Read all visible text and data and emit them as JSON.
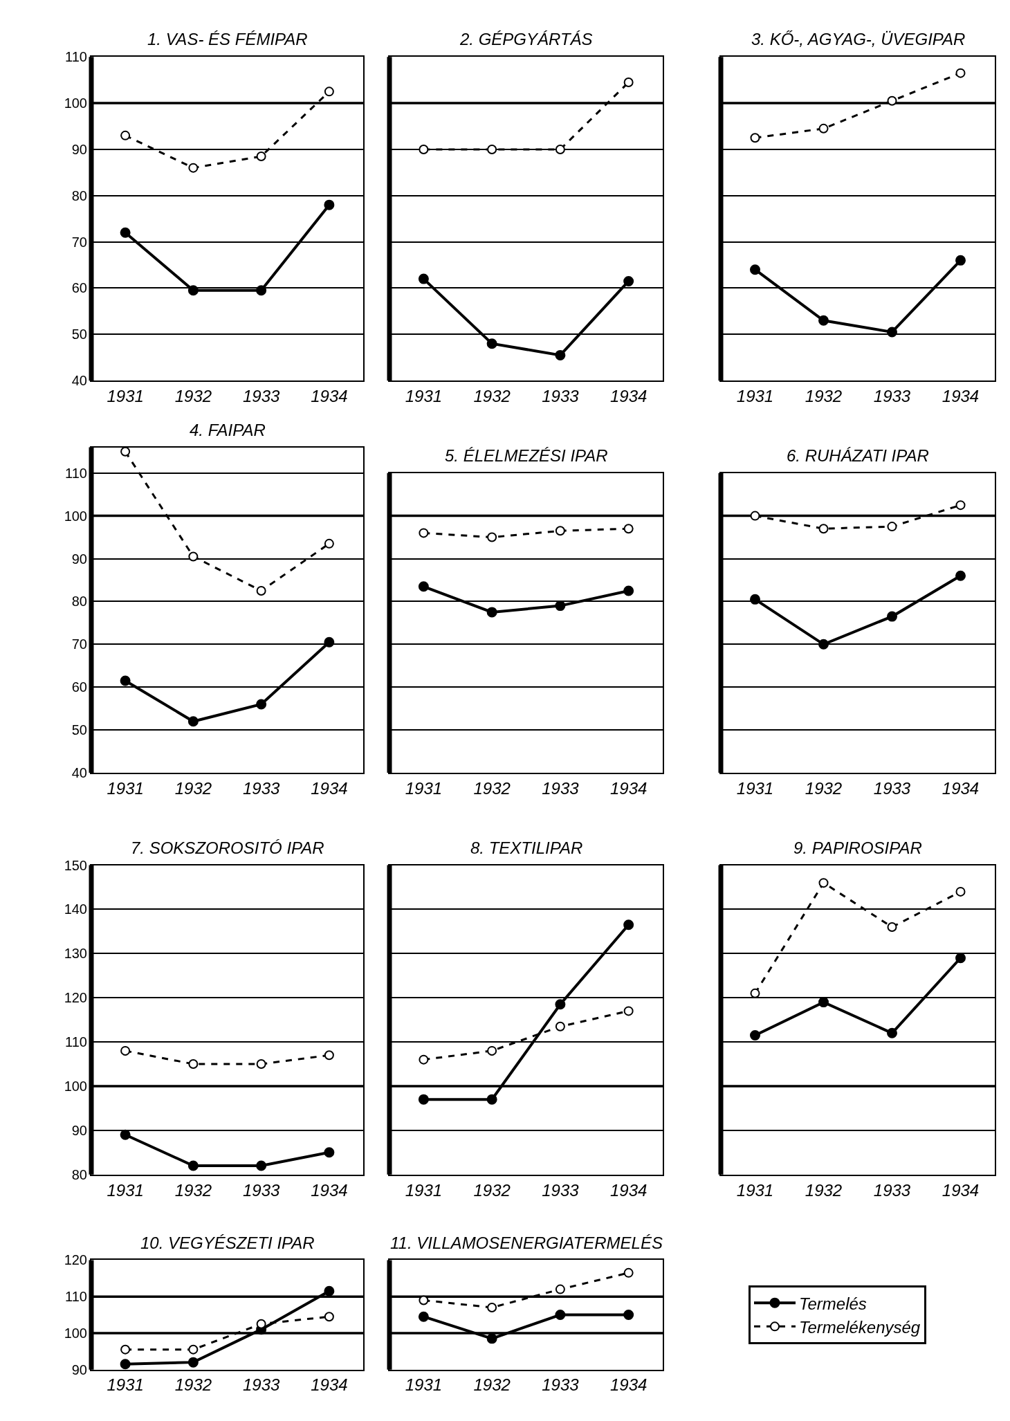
{
  "chart_data": [
    {
      "type": "line",
      "title": "1. VAS- ÉS FÉMIPAR",
      "categories": [
        "1931",
        "1932",
        "1933",
        "1934"
      ],
      "ylim": [
        40,
        110
      ],
      "yticks": [
        40,
        50,
        60,
        70,
        80,
        90,
        100,
        110
      ],
      "grid": "y",
      "legend": "bottom right",
      "ref_lines": [
        {
          "axis": "y",
          "value": 100
        }
      ],
      "series": [
        {
          "name": "Termelés",
          "color": "#000000",
          "marker": "circle",
          "line_style": "solid",
          "values": [
            72,
            59.5,
            59.5,
            78
          ]
        },
        {
          "name": "Termelékenység",
          "color": "#000000",
          "marker": "circle",
          "line_style": "dashed",
          "values": [
            93,
            86,
            88.5,
            102.5
          ]
        }
      ]
    },
    {
      "type": "line",
      "title": "2. GÉPGYÁRTÁS",
      "categories": [
        "1931",
        "1932",
        "1933",
        "1934"
      ],
      "ylim": [
        40,
        110
      ],
      "yticks": [
        40,
        50,
        60,
        70,
        80,
        90,
        100,
        110
      ],
      "grid": "y",
      "tick_labels": "x",
      "ref_lines": [
        {
          "axis": "y",
          "value": 100
        }
      ],
      "series": [
        {
          "color": "#000000",
          "marker": "circle",
          "line_style": "solid",
          "values": [
            62,
            48,
            45.5,
            61.5
          ]
        },
        {
          "color": "#000000",
          "marker": "circle",
          "line_style": "dashed",
          "values": [
            90,
            90,
            90,
            104.5
          ]
        }
      ]
    },
    {
      "type": "line",
      "title": "3. KŐ-, AGYAG-, ÜVEGIPAR",
      "categories": [
        "1931",
        "1932",
        "1933",
        "1934"
      ],
      "ylim": [
        40,
        110
      ],
      "yticks": [
        40,
        50,
        60,
        70,
        80,
        90,
        100,
        110
      ],
      "grid": "y",
      "tick_labels": "x",
      "ref_lines": [
        {
          "axis": "y",
          "value": 100
        }
      ],
      "series": [
        {
          "color": "#000000",
          "marker": "circle",
          "line_style": "solid",
          "values": [
            64,
            53,
            50.5,
            66
          ]
        },
        {
          "color": "#000000",
          "marker": "circle",
          "line_style": "dashed",
          "values": [
            92.5,
            94.5,
            100.5,
            106.5
          ]
        }
      ]
    },
    {
      "type": "line",
      "title": "4. FAIPAR",
      "categories": [
        "1931",
        "1932",
        "1933",
        "1934"
      ],
      "ylim": [
        40,
        116
      ],
      "yticks": [
        40,
        50,
        60,
        70,
        80,
        90,
        100,
        110
      ],
      "grid": "y",
      "ref_lines": [
        {
          "axis": "y",
          "value": 100
        }
      ],
      "series": [
        {
          "color": "#000000",
          "marker": "circle",
          "line_style": "solid",
          "values": [
            61.5,
            52,
            56,
            70.5
          ]
        },
        {
          "color": "#000000",
          "marker": "circle",
          "line_style": "dashed",
          "values": [
            115,
            90.5,
            82.5,
            93.5
          ]
        }
      ]
    },
    {
      "type": "line",
      "title": "5. ÉLELMEZÉSI IPAR",
      "categories": [
        "1931",
        "1932",
        "1933",
        "1934"
      ],
      "ylim": [
        40,
        110
      ],
      "yticks": [
        40,
        50,
        60,
        70,
        80,
        90,
        100,
        110
      ],
      "grid": "y",
      "tick_labels": "x",
      "ref_lines": [
        {
          "axis": "y",
          "value": 100
        }
      ],
      "series": [
        {
          "color": "#000000",
          "marker": "circle",
          "line_style": "solid",
          "values": [
            83.5,
            77.5,
            79,
            82.5
          ]
        },
        {
          "color": "#000000",
          "marker": "circle",
          "line_style": "dashed",
          "values": [
            96,
            95,
            96.5,
            97
          ]
        }
      ]
    },
    {
      "type": "line",
      "title": "6. RUHÁZATI IPAR",
      "categories": [
        "1931",
        "1932",
        "1933",
        "1934"
      ],
      "ylim": [
        40,
        110
      ],
      "yticks": [
        40,
        50,
        60,
        70,
        80,
        90,
        100,
        110
      ],
      "grid": "y",
      "tick_labels": "x",
      "ref_lines": [
        {
          "axis": "y",
          "value": 100
        }
      ],
      "series": [
        {
          "color": "#000000",
          "marker": "circle",
          "line_style": "solid",
          "values": [
            80.5,
            70,
            76.5,
            86
          ]
        },
        {
          "color": "#000000",
          "marker": "circle",
          "line_style": "dashed",
          "values": [
            100,
            97,
            97.5,
            102.5
          ]
        }
      ]
    },
    {
      "type": "line",
      "title": "7. SOKSZOROSITÓ IPAR",
      "categories": [
        "1931",
        "1932",
        "1933",
        "1934"
      ],
      "ylim": [
        80,
        150
      ],
      "yticks": [
        80,
        90,
        100,
        110,
        120,
        130,
        140,
        150
      ],
      "grid": "y",
      "ref_lines": [
        {
          "axis": "y",
          "value": 100
        }
      ],
      "series": [
        {
          "color": "#000000",
          "marker": "circle",
          "line_style": "solid",
          "values": [
            89,
            82,
            82,
            85
          ]
        },
        {
          "color": "#000000",
          "marker": "circle",
          "line_style": "dashed",
          "values": [
            108,
            105,
            105,
            107
          ]
        }
      ]
    },
    {
      "type": "line",
      "title": "8. TEXTILIPAR",
      "categories": [
        "1931",
        "1932",
        "1933",
        "1934"
      ],
      "ylim": [
        80,
        150
      ],
      "yticks": [
        80,
        90,
        100,
        110,
        120,
        130,
        140,
        150
      ],
      "grid": "y",
      "tick_labels": "x",
      "ref_lines": [
        {
          "axis": "y",
          "value": 100
        }
      ],
      "series": [
        {
          "color": "#000000",
          "marker": "circle",
          "line_style": "solid",
          "values": [
            97,
            97,
            118.5,
            136.5
          ]
        },
        {
          "color": "#000000",
          "marker": "circle",
          "line_style": "dashed",
          "values": [
            106,
            108,
            113.5,
            117
          ]
        }
      ]
    },
    {
      "type": "line",
      "title": "9. PAPIROSIPAR",
      "categories": [
        "1931",
        "1932",
        "1933",
        "1934"
      ],
      "ylim": [
        80,
        150
      ],
      "yticks": [
        80,
        90,
        100,
        110,
        120,
        130,
        140,
        150
      ],
      "grid": "y",
      "tick_labels": "x",
      "ref_lines": [
        {
          "axis": "y",
          "value": 100
        }
      ],
      "series": [
        {
          "color": "#000000",
          "marker": "circle",
          "line_style": "solid",
          "values": [
            111.5,
            119,
            112,
            129
          ]
        },
        {
          "color": "#000000",
          "marker": "circle",
          "line_style": "dashed",
          "values": [
            121,
            146,
            136,
            144
          ]
        }
      ]
    },
    {
      "type": "line",
      "title": "10. VEGYÉSZETI IPAR",
      "categories": [
        "1931",
        "1932",
        "1933",
        "1934"
      ],
      "ylim": [
        90,
        120
      ],
      "yticks": [
        90,
        100,
        110,
        120
      ],
      "ref_lines": [
        {
          "axis": "y",
          "value": 100
        },
        {
          "axis": "y",
          "value": 110
        }
      ],
      "series": [
        {
          "color": "#000000",
          "marker": "circle",
          "line_style": "solid",
          "values": [
            91.5,
            92,
            101,
            111.5
          ]
        },
        {
          "color": "#000000",
          "marker": "circle",
          "line_style": "dashed",
          "values": [
            95.5,
            95.5,
            102.5,
            104.5
          ]
        }
      ]
    },
    {
      "type": "line",
      "title": "11. VILLAMOSENERGIATERMELÉS",
      "categories": [
        "1931",
        "1932",
        "1933",
        "1934"
      ],
      "ylim": [
        90,
        120
      ],
      "yticks": [
        90,
        100,
        110,
        120
      ],
      "tick_labels": "x",
      "ref_lines": [
        {
          "axis": "y",
          "value": 100
        },
        {
          "axis": "y",
          "value": 110
        }
      ],
      "series": [
        {
          "color": "#000000",
          "marker": "circle",
          "line_style": "solid",
          "values": [
            104.5,
            98.5,
            105,
            105
          ]
        },
        {
          "color": "#000000",
          "marker": "circle",
          "line_style": "dashed",
          "values": [
            109,
            107,
            112,
            116.5
          ]
        }
      ]
    }
  ]
}
